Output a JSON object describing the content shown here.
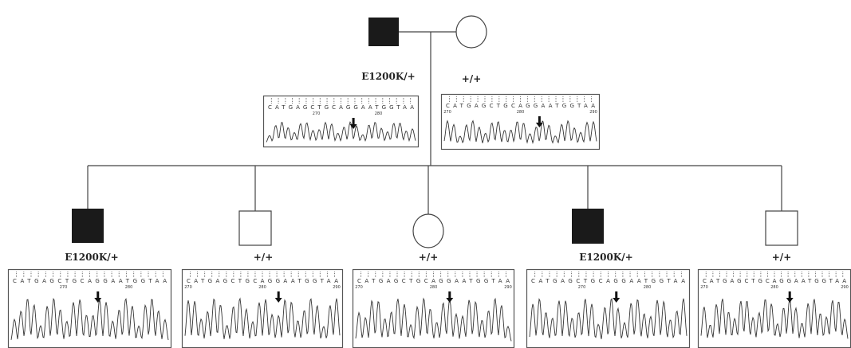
{
  "father": {
    "label": "E1200K/+",
    "sequence": "CATGAGCTGCAGGAATGGTAA",
    "positions": [
      "270",
      "280"
    ]
  },
  "mother": {
    "label": "+/+",
    "sequence": "CATGAGCTGCAGGAATGGTAA",
    "positions": [
      "270",
      "280",
      "290"
    ]
  },
  "children": [
    {
      "label": "E1200K/+",
      "sequence": "CATGAGCTGCAGGAATGGTAA",
      "positions": [
        "270",
        "280"
      ]
    },
    {
      "label": "+/+",
      "sequence": "CATGAGCTGCAGGAATGGTAA",
      "positions": [
        "270",
        "280",
        "290"
      ]
    },
    {
      "label": "+/+",
      "sequence": "CATGAGCTGCAGGAATGGTAA",
      "positions": [
        "270",
        "280",
        "290"
      ]
    },
    {
      "label": "E1200K/+",
      "sequence": "CATGAGCTGCAGGAATGGTAA",
      "positions": [
        "270",
        "280"
      ]
    },
    {
      "label": "+/+",
      "sequence": "CATGAGCTGCAGGAATGGTAA",
      "positions": [
        "270",
        "280",
        "290"
      ]
    }
  ]
}
